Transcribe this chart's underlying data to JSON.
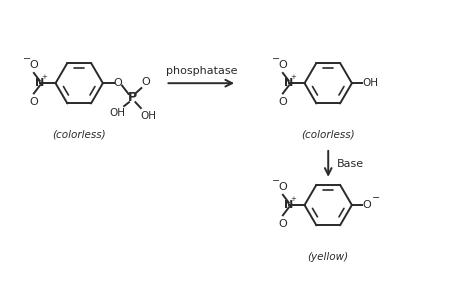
{
  "bg_color": "#ffffff",
  "line_color": "#2a2a2a",
  "text_color": "#2a2a2a",
  "figsize": [
    4.74,
    2.98
  ],
  "dpi": 100,
  "arrow1_label": "phosphatase",
  "arrow2_label": "Base",
  "label1": "(colorless)",
  "label2": "(colorless)",
  "label3": "(yellow)",
  "ring_r": 0.48,
  "lw": 1.4
}
